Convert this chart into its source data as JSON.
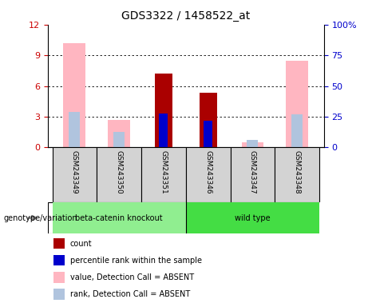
{
  "title": "GDS3322 / 1458522_at",
  "samples": [
    "GSM243349",
    "GSM243350",
    "GSM243351",
    "GSM243346",
    "GSM243347",
    "GSM243348"
  ],
  "groups": [
    "beta-catenin knockout",
    "beta-catenin knockout",
    "beta-catenin knockout",
    "wild type",
    "wild type",
    "wild type"
  ],
  "group_colors": {
    "beta-catenin knockout": "#90EE90",
    "wild type": "#00CC44"
  },
  "left_ylim": [
    0,
    12
  ],
  "right_ylim": [
    0,
    100
  ],
  "left_yticks": [
    0,
    3,
    6,
    9,
    12
  ],
  "right_yticks": [
    0,
    25,
    50,
    75,
    100
  ],
  "right_yticklabels": [
    "0",
    "25",
    "50",
    "75",
    "100%"
  ],
  "count_values": [
    0,
    0,
    7.2,
    5.3,
    0,
    0
  ],
  "percentile_values": [
    0,
    0,
    3.3,
    2.6,
    0,
    0
  ],
  "absent_value": [
    10.2,
    2.7,
    0,
    0,
    0.5,
    8.5
  ],
  "absent_rank": [
    3.5,
    1.5,
    0,
    0,
    0.7,
    3.2
  ],
  "bar_width": 0.4,
  "count_color": "#AA0000",
  "percentile_color": "#0000CC",
  "absent_value_color": "#FFB6C1",
  "absent_rank_color": "#B0C4DE",
  "left_label_color": "#CC0000",
  "right_label_color": "#0000CC",
  "grid_color": "#000000",
  "bg_color": "#FFFFFF",
  "plot_bg": "#FFFFFF",
  "xticklabel_fontsize": 8,
  "title_fontsize": 11
}
